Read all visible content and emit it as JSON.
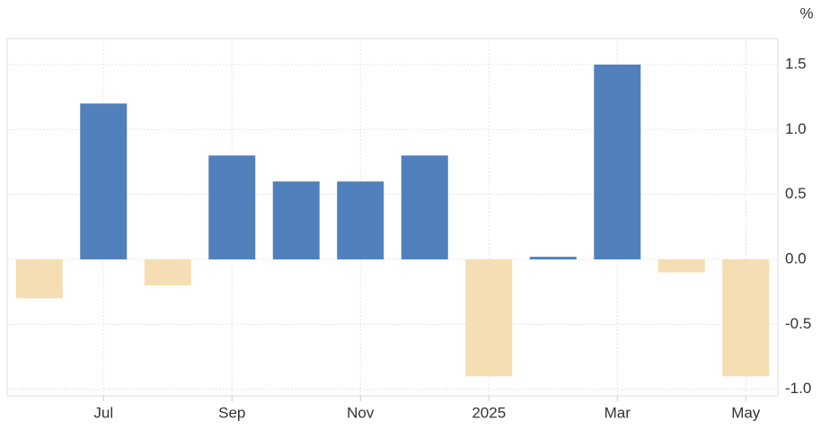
{
  "chart_data": {
    "type": "bar",
    "unit": "%",
    "categories": [
      null,
      "Jul",
      null,
      "Sep",
      null,
      "Nov",
      null,
      "2025",
      null,
      "Mar",
      null,
      "May"
    ],
    "values": [
      -0.3,
      1.2,
      -0.2,
      0.8,
      0.6,
      0.6,
      0.8,
      -0.9,
      0.02,
      1.5,
      -0.1,
      -0.9
    ],
    "positive_color": "#5180bc",
    "negative_color": "#f5deb3",
    "ylim": [
      -1.05,
      1.7
    ],
    "yticks": [
      1.5,
      {
        "value": 1.0,
        "label": "1.0"
      },
      0.5,
      {
        "value": 0,
        "label": "0.0"
      },
      -0.5,
      {
        "value": -1.0,
        "label": "-1.0"
      }
    ],
    "grid": true
  }
}
